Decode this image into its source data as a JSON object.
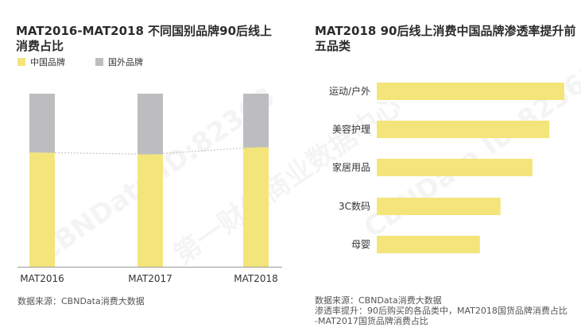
{
  "left_panel": {
    "title": "MAT2016-MAT2018 不同国别品牌90后线上消费占比",
    "legend": [
      {
        "label": "中国品牌",
        "color": "#F3E57A"
      },
      {
        "label": "国外品牌",
        "color": "#BDBDBF"
      }
    ],
    "source": "数据来源：CBNData消费大数据"
  },
  "right_panel": {
    "title": "MAT2018 90后线上消费中国品牌渗透率提升前五品类",
    "source_lines": [
      "数据来源：CBNData消费大数据",
      "渗透率提升：90后购买的各品类中，MAT2018国货品牌消费占比",
      "-MAT2017国货品牌消费占比"
    ]
  },
  "watermark": {
    "text": "CBNData ID:82363",
    "text2": "第一财经商业数据中心"
  },
  "chart_data": [
    {
      "type": "bar",
      "stacked": true,
      "categories": [
        "MAT2016",
        "MAT2017",
        "MAT2018"
      ],
      "series": [
        {
          "name": "中国品牌",
          "values": [
            66,
            65,
            69
          ],
          "color": "#F3E57A"
        },
        {
          "name": "国外品牌",
          "values": [
            34,
            35,
            31
          ],
          "color": "#BDBDBF"
        }
      ],
      "ylim": [
        0,
        100
      ],
      "grid": false,
      "legend": "top-left"
    },
    {
      "type": "bar",
      "orientation": "horizontal",
      "categories": [
        "运动/户外",
        "美容护理",
        "家居用品",
        "3C数码",
        "母婴"
      ],
      "values": [
        100,
        92,
        83,
        66,
        55
      ],
      "color": "#F3E57A",
      "grid": false
    }
  ]
}
